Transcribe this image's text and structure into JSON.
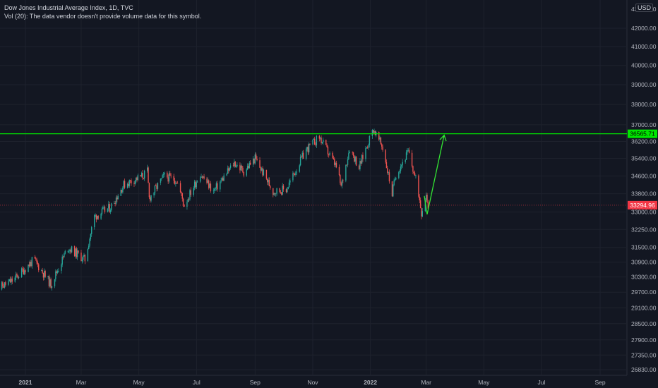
{
  "legend": {
    "title": "Dow Jones Industrial Average Index, 1D, TVC",
    "volume_note": "Vol (20): The data vendor doesn't provide volume data for this symbol."
  },
  "currency": "USD",
  "colors": {
    "background": "#131722",
    "up": "#26a69a",
    "down": "#ef5350",
    "level_line": "#00e600",
    "arrow": "#33e633",
    "last_price": "#f23645",
    "grid": "#1e222d",
    "text": "#b2b5be"
  },
  "chart_data": {
    "type": "candlestick",
    "title": "Dow Jones Industrial Average Index, 1D, TVC",
    "y_ticks": [
      43000,
      42000,
      41000,
      40000,
      39000,
      38000,
      37000,
      36200,
      35400,
      34600,
      33800,
      33000,
      32250,
      31500,
      30900,
      30300,
      29700,
      29100,
      28500,
      27900,
      27350,
      26830
    ],
    "x_ticks": [
      "2021",
      "Mar",
      "May",
      "Jul",
      "Sep",
      "Nov",
      "2022",
      "Mar",
      "May",
      "Jul",
      "Sep"
    ],
    "resistance_level": 36565.71,
    "resistance_label": "36565.71",
    "last_price": 33294.96,
    "last_price_label": "33294.96",
    "price_path": [
      {
        "date": "2020-12-01",
        "close": 29800
      },
      {
        "date": "2020-12-20",
        "close": 30200
      },
      {
        "date": "2021-01-10",
        "close": 31000
      },
      {
        "date": "2021-01-28",
        "close": 30000
      },
      {
        "date": "2021-02-15",
        "close": 31500
      },
      {
        "date": "2021-03-05",
        "close": 31000
      },
      {
        "date": "2021-03-15",
        "close": 32800
      },
      {
        "date": "2021-04-01",
        "close": 33200
      },
      {
        "date": "2021-04-15",
        "close": 34200
      },
      {
        "date": "2021-05-05",
        "close": 34600
      },
      {
        "date": "2021-05-10",
        "close": 34800
      },
      {
        "date": "2021-05-12",
        "close": 33600
      },
      {
        "date": "2021-05-28",
        "close": 34600
      },
      {
        "date": "2021-06-10",
        "close": 34400
      },
      {
        "date": "2021-06-18",
        "close": 33300
      },
      {
        "date": "2021-07-05",
        "close": 34700
      },
      {
        "date": "2021-07-19",
        "close": 33900
      },
      {
        "date": "2021-08-10",
        "close": 35200
      },
      {
        "date": "2021-08-20",
        "close": 34800
      },
      {
        "date": "2021-09-01",
        "close": 35400
      },
      {
        "date": "2021-09-20",
        "close": 33900
      },
      {
        "date": "2021-10-04",
        "close": 34000
      },
      {
        "date": "2021-10-25",
        "close": 35800
      },
      {
        "date": "2021-11-08",
        "close": 36400
      },
      {
        "date": "2021-11-26",
        "close": 35000
      },
      {
        "date": "2021-12-01",
        "close": 34100
      },
      {
        "date": "2021-12-10",
        "close": 35900
      },
      {
        "date": "2021-12-20",
        "close": 35000
      },
      {
        "date": "2022-01-04",
        "close": 36800
      },
      {
        "date": "2022-01-14",
        "close": 35900
      },
      {
        "date": "2022-01-24",
        "close": 33800
      },
      {
        "date": "2022-01-28",
        "close": 34700
      },
      {
        "date": "2022-02-10",
        "close": 35700
      },
      {
        "date": "2022-02-20",
        "close": 34100
      },
      {
        "date": "2022-02-24",
        "close": 33000
      },
      {
        "date": "2022-03-01",
        "close": 33800
      },
      {
        "date": "2022-03-03",
        "close": 33295
      }
    ],
    "projection": [
      {
        "date": "2022-03-02",
        "value": 32900
      },
      {
        "date": "2022-03-20",
        "value": 36500
      }
    ],
    "y_scale": "log"
  }
}
